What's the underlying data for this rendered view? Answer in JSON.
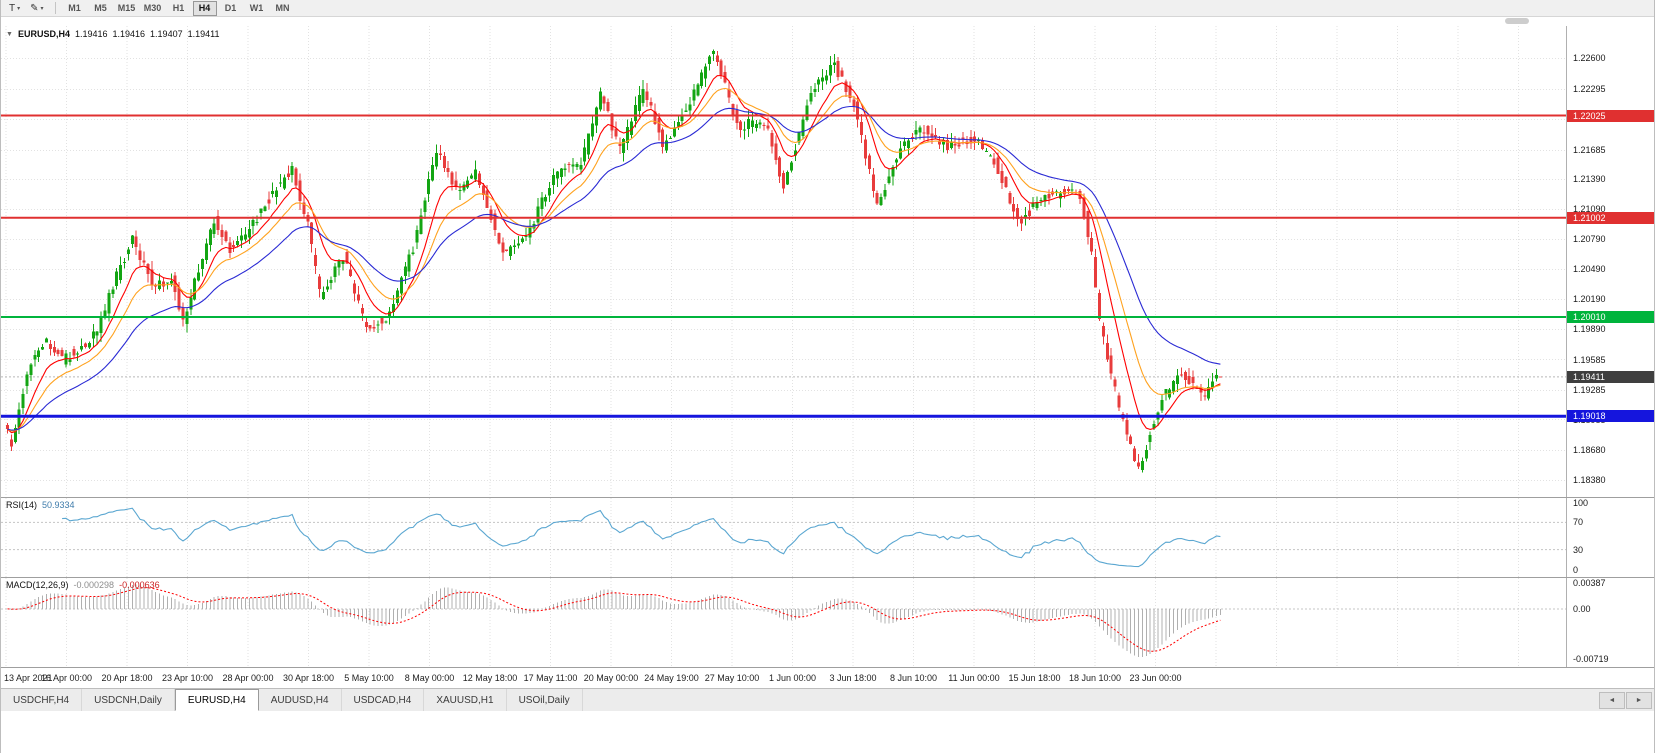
{
  "toolbar": {
    "tick_tool": "T",
    "timeframes": [
      "M1",
      "M5",
      "M15",
      "M30",
      "H1",
      "H4",
      "D1",
      "W1",
      "MN"
    ],
    "active_timeframe": "H4"
  },
  "icons": {
    "collapse_marker": "▼",
    "dropdown_caret": "▾",
    "pencil": "✎",
    "scroll_left": "◄",
    "scroll_right": "►"
  },
  "quote": {
    "symbol": "EURUSD,H4",
    "open": "1.19416",
    "high": "1.19416",
    "low": "1.19407",
    "close": "1.19411"
  },
  "colors": {
    "up": "#13a513",
    "down": "#e83c3c",
    "grid": "#e2e2e2",
    "ma_fast": "#ff0000",
    "ma_mid": "#ffa21f",
    "ma_slow": "#2a2ad4",
    "cur_line": "#b8b8b8",
    "cur_badge": "#3f3f3f",
    "rsi": "#5ba7d1",
    "macd_hist": "#b0b0b0",
    "macd_signal": "#ff0000"
  },
  "chart_data": {
    "type": "candlestick",
    "symbol": "EURUSD",
    "timeframe": "H4",
    "price_axis": {
      "top": 1.2292,
      "bottom": 1.1821,
      "labels": [
        "1.22600",
        "1.22295",
        "1.21990",
        "1.21685",
        "1.21390",
        "1.21090",
        "1.20790",
        "1.20490",
        "1.20190",
        "1.19890",
        "1.19585",
        "1.19285",
        "1.18985",
        "1.18680",
        "1.18380"
      ]
    },
    "levels": [
      {
        "price": 1.22025,
        "label": "1.22025",
        "color": "#e03030",
        "width": 2,
        "type": "resistance"
      },
      {
        "price": 1.21002,
        "label": "1.21002",
        "color": "#e03030",
        "width": 2,
        "type": "resistance"
      },
      {
        "price": 1.2001,
        "label": "1.20010",
        "color": "#00b43c",
        "width": 2,
        "type": "support"
      },
      {
        "price": 1.19018,
        "label": "1.19018",
        "color": "#1515dd",
        "width": 3,
        "type": "support"
      }
    ],
    "current_price": {
      "value": 1.19411,
      "label": "1.19411"
    },
    "candle_count": 312,
    "price_path": [
      [
        0,
        1.1895
      ],
      [
        2,
        1.1872
      ],
      [
        6,
        1.1948
      ],
      [
        11,
        1.1979
      ],
      [
        15,
        1.1958
      ],
      [
        21,
        1.1975
      ],
      [
        24,
        1.1985
      ],
      [
        28,
        1.2033
      ],
      [
        33,
        1.2078
      ],
      [
        36,
        1.2052
      ],
      [
        39,
        1.203
      ],
      [
        43,
        1.204
      ],
      [
        46,
        1.1996
      ],
      [
        51,
        1.2062
      ],
      [
        54,
        1.2097
      ],
      [
        58,
        1.2068
      ],
      [
        63,
        1.2089
      ],
      [
        69,
        1.2125
      ],
      [
        74,
        1.215
      ],
      [
        78,
        1.209
      ],
      [
        81,
        1.2022
      ],
      [
        87,
        1.2063
      ],
      [
        93,
        1.1988
      ],
      [
        99,
        1.2004
      ],
      [
        105,
        1.207
      ],
      [
        111,
        1.2168
      ],
      [
        116,
        1.2126
      ],
      [
        121,
        1.2147
      ],
      [
        128,
        1.2063
      ],
      [
        134,
        1.208
      ],
      [
        141,
        1.2144
      ],
      [
        148,
        1.2155
      ],
      [
        153,
        1.2224
      ],
      [
        158,
        1.2168
      ],
      [
        164,
        1.223
      ],
      [
        169,
        1.2172
      ],
      [
        176,
        1.2216
      ],
      [
        182,
        1.2268
      ],
      [
        188,
        1.2192
      ],
      [
        195,
        1.2196
      ],
      [
        200,
        1.2133
      ],
      [
        207,
        1.2228
      ],
      [
        213,
        1.2252
      ],
      [
        218,
        1.2212
      ],
      [
        224,
        1.211
      ],
      [
        230,
        1.217
      ],
      [
        236,
        1.219
      ],
      [
        242,
        1.2172
      ],
      [
        248,
        1.218
      ],
      [
        254,
        1.2158
      ],
      [
        260,
        1.2095
      ],
      [
        266,
        1.212
      ],
      [
        272,
        1.2127
      ],
      [
        276,
        1.2122
      ],
      [
        279,
        1.206
      ],
      [
        281,
        1.1995
      ],
      [
        286,
        1.1907
      ],
      [
        291,
        1.1848
      ],
      [
        297,
        1.1921
      ],
      [
        302,
        1.1944
      ],
      [
        308,
        1.1923
      ],
      [
        311,
        1.1941
      ]
    ],
    "moving_averages": [
      {
        "name": "fast",
        "period": 9
      },
      {
        "name": "mid",
        "period": 17
      },
      {
        "name": "slow",
        "period": 34
      }
    ],
    "x_labels": [
      "13 Apr 2021",
      "16 Apr 00:00",
      "20 Apr 18:00",
      "23 Apr 10:00",
      "28 Apr 00:00",
      "30 Apr 18:00",
      "5 May 10:00",
      "8 May 00:00",
      "12 May 18:00",
      "17 May 11:00",
      "20 May 00:00",
      "24 May 19:00",
      "27 May 10:00",
      "1 Jun 00:00",
      "3 Jun 18:00",
      "8 Jun 10:00",
      "11 Jun 00:00",
      "15 Jun 18:00",
      "18 Jun 10:00",
      "23 Jun 00:00"
    ],
    "rsi": {
      "label": "RSI(14)",
      "period": 14,
      "value": "50.9334",
      "scale": [
        "100",
        "70",
        "30",
        "0"
      ],
      "levels": [
        70,
        30
      ]
    },
    "macd": {
      "label": "MACD(12,26,9)",
      "fast": 12,
      "slow": 26,
      "signal": 9,
      "value_main": "-0.000298",
      "value_signal": "-0.000636",
      "scale_top": "0.00387",
      "scale_zero": "0.00",
      "scale_bottom": "-0.00719",
      "range_top": 0.00387,
      "range_bottom": -0.00719
    }
  },
  "tabs": {
    "items": [
      "USDCHF,H4",
      "USDCNH,Daily",
      "EURUSD,H4",
      "AUDUSD,H4",
      "USDCAD,H4",
      "XAUUSD,H1",
      "USOil,Daily"
    ],
    "active_index": 2
  }
}
